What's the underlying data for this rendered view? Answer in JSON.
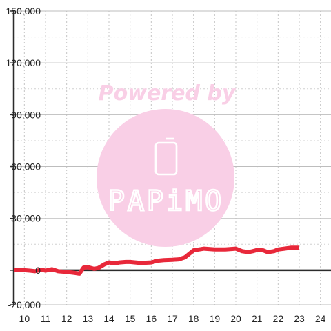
{
  "watermark": {
    "caption": "Powered by",
    "logo_text": "PAPiMO",
    "color": "#f9cfe6"
  },
  "chart_data": {
    "type": "line",
    "title": "",
    "xlabel": "",
    "ylabel": "",
    "xlim": [
      9.5,
      24.5
    ],
    "ylim": [
      -20000,
      150000
    ],
    "x_ticks": [
      10,
      11,
      12,
      13,
      14,
      15,
      16,
      17,
      18,
      19,
      20,
      21,
      22,
      23,
      24
    ],
    "y_ticks": [
      -20000,
      0,
      30000,
      60000,
      90000,
      120000,
      150000
    ],
    "y_tick_labels": [
      "-20,000",
      "0",
      "30,000",
      "60,000",
      "90,000",
      "120,000",
      "150,000"
    ],
    "grid": true,
    "legend": "none",
    "series": [
      {
        "color": "#e8283a",
        "x": [
          9.5,
          10.0,
          10.3,
          10.5,
          10.8,
          11.0,
          11.3,
          11.6,
          12.0,
          12.4,
          12.6,
          12.8,
          13.0,
          13.3,
          13.5,
          13.8,
          14.0,
          14.3,
          14.5,
          14.8,
          15.0,
          15.5,
          16.0,
          16.3,
          16.6,
          17.0,
          17.3,
          17.6,
          18.0,
          18.5,
          19.0,
          19.5,
          20.0,
          20.3,
          20.6,
          20.8,
          21.0,
          21.3,
          21.5,
          21.8,
          22.0,
          22.3,
          22.6,
          23.0
        ],
        "y": [
          0,
          0,
          -300,
          -600,
          300,
          -300,
          600,
          -600,
          -1000,
          -1600,
          -2000,
          1500,
          1800,
          800,
          1300,
          3500,
          4500,
          4000,
          4500,
          4800,
          4800,
          4200,
          4500,
          5500,
          5800,
          6000,
          6300,
          7500,
          11500,
          12500,
          12000,
          12000,
          12500,
          11000,
          10500,
          11000,
          11700,
          11500,
          10500,
          11000,
          12000,
          12500,
          13000,
          13000
        ]
      }
    ]
  }
}
